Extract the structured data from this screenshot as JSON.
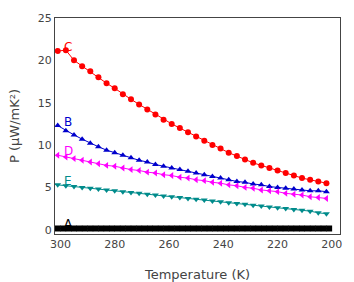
{
  "chart_data": {
    "type": "line",
    "xlabel": "Temperature (K)",
    "ylabel": "P (μW/mK²)",
    "xlim": [
      302,
      197
    ],
    "ylim": [
      -0.5,
      25
    ],
    "xticks": [
      300,
      280,
      260,
      240,
      220,
      200
    ],
    "yticks": [
      0,
      5,
      10,
      15,
      20,
      25
    ],
    "grid": false,
    "series": [
      {
        "name": "C",
        "color": "#ff0000",
        "marker": "circle",
        "x": [
          301,
          298,
          295,
          292,
          289,
          286,
          283,
          280,
          277,
          274,
          271,
          268,
          265,
          262,
          259,
          256,
          253,
          250,
          247,
          244,
          241,
          238,
          235,
          232,
          229,
          226,
          223,
          220,
          217,
          214,
          211,
          208,
          205,
          202
        ],
        "values": [
          21.1,
          21.2,
          20.0,
          19.3,
          18.7,
          18.0,
          17.3,
          16.7,
          16.0,
          15.4,
          14.8,
          14.2,
          13.6,
          13.0,
          12.5,
          12.0,
          11.5,
          11.0,
          10.5,
          10.0,
          9.6,
          9.1,
          8.7,
          8.3,
          7.9,
          7.6,
          7.3,
          7.0,
          6.7,
          6.4,
          6.1,
          5.9,
          5.7,
          5.5
        ]
      },
      {
        "name": "B",
        "color": "#0000cc",
        "marker": "triangle-up",
        "x": [
          301,
          298,
          295,
          292,
          289,
          286,
          283,
          280,
          277,
          274,
          271,
          268,
          265,
          262,
          259,
          256,
          253,
          250,
          247,
          244,
          241,
          238,
          235,
          232,
          229,
          226,
          223,
          220,
          217,
          214,
          211,
          208,
          205,
          202
        ],
        "values": [
          12.3,
          11.7,
          11.2,
          10.7,
          10.2,
          9.8,
          9.4,
          9.1,
          8.8,
          8.5,
          8.2,
          8.0,
          7.7,
          7.5,
          7.3,
          7.1,
          6.9,
          6.7,
          6.5,
          6.3,
          6.1,
          5.9,
          5.7,
          5.6,
          5.4,
          5.3,
          5.1,
          5.0,
          4.9,
          4.8,
          4.7,
          4.6,
          4.6,
          4.5
        ]
      },
      {
        "name": "D",
        "color": "#ff00ff",
        "marker": "triangle-left",
        "x": [
          301,
          298,
          295,
          292,
          289,
          286,
          283,
          280,
          277,
          274,
          271,
          268,
          265,
          262,
          259,
          256,
          253,
          250,
          247,
          244,
          241,
          238,
          235,
          232,
          229,
          226,
          223,
          220,
          217,
          214,
          211,
          208,
          205,
          202
        ],
        "values": [
          8.8,
          8.6,
          8.4,
          8.2,
          8.0,
          7.8,
          7.6,
          7.5,
          7.3,
          7.1,
          7.0,
          6.8,
          6.7,
          6.5,
          6.4,
          6.2,
          6.1,
          5.9,
          5.8,
          5.6,
          5.5,
          5.3,
          5.2,
          5.0,
          4.9,
          4.7,
          4.6,
          4.5,
          4.3,
          4.2,
          4.1,
          3.9,
          3.8,
          3.7
        ]
      },
      {
        "name": "E",
        "color": "#008b8b",
        "marker": "triangle-down",
        "x": [
          301,
          298,
          295,
          292,
          289,
          286,
          283,
          280,
          277,
          274,
          271,
          268,
          265,
          262,
          259,
          256,
          253,
          250,
          247,
          244,
          241,
          238,
          235,
          232,
          229,
          226,
          223,
          220,
          217,
          214,
          211,
          208,
          205,
          202
        ],
        "values": [
          5.3,
          5.2,
          5.1,
          5.0,
          4.9,
          4.8,
          4.7,
          4.6,
          4.5,
          4.4,
          4.3,
          4.2,
          4.1,
          4.0,
          3.9,
          3.8,
          3.7,
          3.6,
          3.5,
          3.4,
          3.3,
          3.2,
          3.1,
          3.0,
          2.9,
          2.8,
          2.7,
          2.6,
          2.5,
          2.4,
          2.3,
          2.2,
          2.0,
          1.9
        ]
      },
      {
        "name": "A",
        "color": "#000000",
        "marker": "square",
        "x": [
          301,
          299,
          297,
          295,
          293,
          291,
          289,
          287,
          285,
          283,
          281,
          279,
          277,
          275,
          273,
          271,
          269,
          267,
          265,
          263,
          261,
          259,
          257,
          255,
          253,
          251,
          249,
          247,
          245,
          243,
          241,
          239,
          237,
          235,
          233,
          231,
          229,
          227,
          225,
          223,
          221,
          219,
          217,
          215,
          213,
          211,
          209,
          207,
          205,
          203,
          201
        ],
        "values": [
          0.15,
          0.15,
          0.15,
          0.15,
          0.15,
          0.15,
          0.15,
          0.15,
          0.15,
          0.15,
          0.15,
          0.15,
          0.15,
          0.15,
          0.15,
          0.15,
          0.15,
          0.15,
          0.15,
          0.15,
          0.15,
          0.15,
          0.15,
          0.15,
          0.15,
          0.15,
          0.15,
          0.15,
          0.15,
          0.15,
          0.15,
          0.15,
          0.15,
          0.15,
          0.15,
          0.15,
          0.15,
          0.15,
          0.15,
          0.15,
          0.15,
          0.15,
          0.15,
          0.15,
          0.15,
          0.15,
          0.15,
          0.15,
          0.15,
          0.15,
          0.15
        ]
      }
    ],
    "annotations": [
      {
        "text": "A",
        "x": 299.5,
        "y": 0.65,
        "color": "#000000"
      },
      {
        "text": "B",
        "x": 299.5,
        "y": 12.7,
        "color": "#0000cc"
      },
      {
        "text": "C",
        "x": 299.5,
        "y": 21.6,
        "color": "#ff0000"
      },
      {
        "text": "D",
        "x": 299.5,
        "y": 9.3,
        "color": "#ff00ff"
      },
      {
        "text": "E",
        "x": 299.5,
        "y": 5.8,
        "color": "#008b8b"
      }
    ]
  }
}
